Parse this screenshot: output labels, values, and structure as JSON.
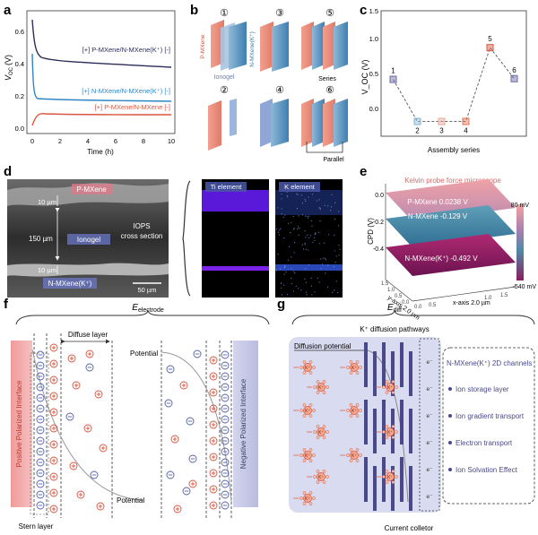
{
  "panels": {
    "a": "a",
    "b": "b",
    "c": "c",
    "d": "d",
    "e": "e",
    "f": "f",
    "g": "g"
  },
  "panel_a": {
    "ylabel_main": "V",
    "ylabel_sub": "OC",
    "ylabel_unit": "(V)",
    "xlabel": "Time (h)",
    "yticks": [
      "0.0",
      "0.2",
      "0.4",
      "0.6"
    ],
    "xticks": [
      "0",
      "2",
      "4",
      "6",
      "8",
      "10"
    ],
    "legend": [
      "[+] P-MXene/N-MXene(K⁺) [-]",
      "[+] N-MXene/N-MXene(K⁺) [-]",
      "[+] P-MXene/N-MXene [-]"
    ],
    "colors": [
      "#2b2c55",
      "#2f86c6",
      "#d9553f"
    ]
  },
  "chart_data": {
    "type": "line",
    "title": "",
    "xlabel": "Assembly series",
    "ylabel": "V_OC (V)",
    "x": [
      "1",
      "2",
      "3",
      "4",
      "5",
      "6"
    ],
    "values": [
      0.57,
      0.0,
      0.0,
      0.0,
      1.0,
      0.58
    ],
    "ylim": [
      -0.2,
      1.5
    ],
    "yticks": [
      "0.0",
      "0.5",
      "1.0",
      "1.5"
    ],
    "marker_colors": [
      "#6a6aa8",
      "#8ab6d6",
      "#e8a898",
      "#e07858",
      "#d9553f",
      "#6a6aa8"
    ]
  },
  "panel_b": {
    "numbers": [
      "①",
      "③",
      "⑤",
      "②",
      "④",
      "⑥"
    ],
    "label_p": "P-MXene",
    "label_n": "N-MXene(K⁺)",
    "label_ionogel": "Ionogel",
    "label_series": "Series",
    "label_parallel": "Parallel"
  },
  "panel_d": {
    "label_pmxene": "P-MXene",
    "label_ionogel": "Ionogel",
    "label_nmxene": "N-MXene(K⁺)",
    "dim_top": "10 µm",
    "dim_mid": "150 µm",
    "dim_bot": "10 µm",
    "iops_line1": "IOPS",
    "iops_line2": "cross section",
    "scalebar": "50 µm",
    "ti_title": "Ti element",
    "k_title": "K element"
  },
  "panel_e": {
    "title": "Kelvin probe force microscope",
    "pm": "P-MXene  0.0238 V",
    "nm": "N-MXene  -0.129 V",
    "nmk": "N-MXene(K⁺)  -0.492 V",
    "ylabel": "CPD (V)",
    "zticks": [
      "0.0",
      "-0.2",
      "-0.4"
    ],
    "cbar_top": "80 mV",
    "cbar_bot": "-540 mV",
    "yaxis": "y-axis 2.0 µm",
    "xaxis": "x-axis 2.0 µm",
    "ytick_1": "1.5",
    "ytick_2": "1.0",
    "ytick_3": "0.5",
    "ytick_4": "0.0",
    "xtick_1": "0.0",
    "xtick_2": "0.5",
    "xtick_3": "1.0",
    "xtick_4": "1.5"
  },
  "panel_f": {
    "e_main": "E",
    "e_sub": "electrode",
    "diffuse": "Diffuse layer",
    "positive": "Positive Polarized Interface",
    "negative": "Negative Polarized Interface",
    "potential_top": "Potential",
    "potential_bottom": "Potential",
    "stern": "Stern layer"
  },
  "panel_g": {
    "e_main": "E",
    "e_sub": "diff",
    "pathways": "K⁺ diffusion pathways",
    "diffusion_potential": "Diffusion potential",
    "current_collector": "Current colletor",
    "legend_title": "N-MXene(K⁺) 2D channels",
    "items": [
      "Ion storage layer",
      "Ion gradient transport",
      "Electron transport",
      "Ion Solvation Effect"
    ],
    "electron": "e⁻",
    "kplus": "K⁺"
  }
}
